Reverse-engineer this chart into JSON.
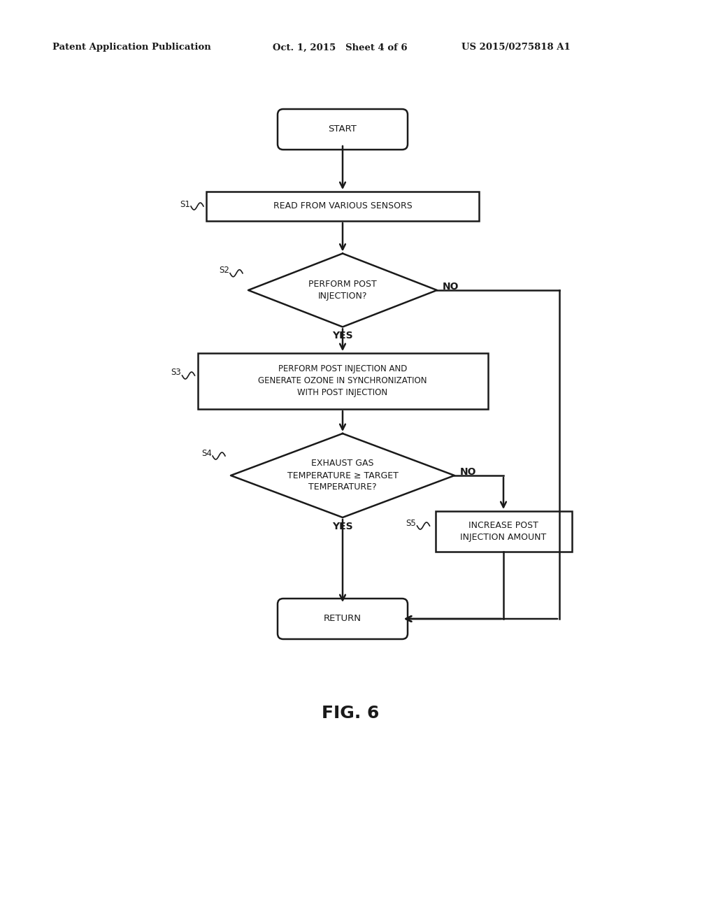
{
  "bg_color": "#ffffff",
  "line_color": "#1a1a1a",
  "text_color": "#1a1a1a",
  "header_left": "Patent Application Publication",
  "header_mid": "Oct. 1, 2015   Sheet 4 of 6",
  "header_right": "US 2015/0275818 A1",
  "fig_label": "FIG. 6",
  "start_label": "START",
  "return_label": "RETURN",
  "s1_label": "READ FROM VARIOUS SENSORS",
  "s2_label": "PERFORM POST\nINJECTION?",
  "s3_label": "PERFORM POST INJECTION AND\nGENERATE OZONE IN SYNCHRONIZATION\nWITH POST INJECTION",
  "s4_label": "EXHAUST GAS\nTEMPERATURE ≥ TARGET\nTEMPERATURE?",
  "s5_label": "INCREASE POST\nINJECTION AMOUNT",
  "yes_label": "YES",
  "no_label": "NO",
  "step_labels": [
    "S1",
    "S2",
    "S3",
    "S4",
    "S5"
  ],
  "font_size_node": 9,
  "font_size_header": 9.5,
  "font_size_fig": 18,
  "font_size_step": 8.5,
  "font_size_yesno": 10
}
